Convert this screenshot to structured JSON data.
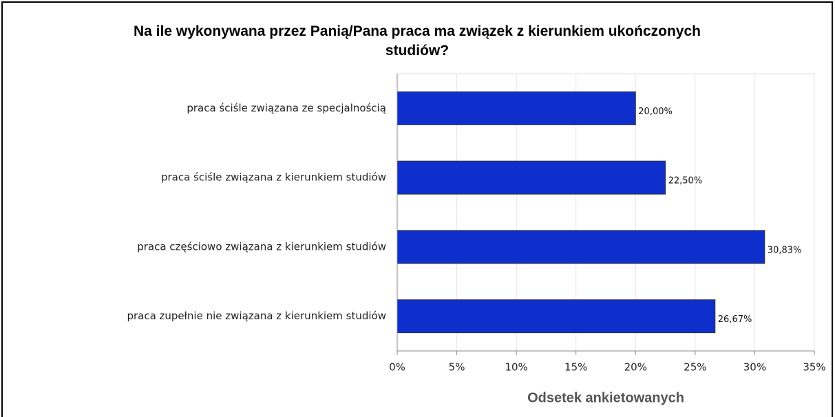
{
  "chart_data": {
    "type": "bar",
    "orientation": "horizontal",
    "title": "Na ile wykonywana przez Panią/Pana praca ma związek z kierunkiem ukończonych studiów?",
    "x_label": "Odsetek ankietowanych",
    "categories": [
      "praca ściśle związana ze specjalnością",
      "praca ściśle związana z kierunkiem studiów",
      "praca częściowo związana z kierunkiem studiów",
      "praca zupełnie nie związana z kierunkiem studiów"
    ],
    "values": [
      20,
      22.5,
      30.83,
      26.67
    ],
    "value_labels": [
      "20,00%",
      "22,50%",
      "30,83%",
      "26,67%"
    ],
    "color": "#0f2fcc",
    "xlim": [
      0,
      35
    ],
    "xticks": [
      {
        "value": 0,
        "label": "0%"
      },
      {
        "value": 5,
        "label": "5%"
      },
      {
        "value": 10,
        "label": "10%"
      },
      {
        "value": 15,
        "label": "15%"
      },
      {
        "value": 20,
        "label": "20%"
      },
      {
        "value": 25,
        "label": "25%"
      },
      {
        "value": 30,
        "label": "30%"
      },
      {
        "value": 35,
        "label": "35%"
      }
    ],
    "grid": true
  }
}
